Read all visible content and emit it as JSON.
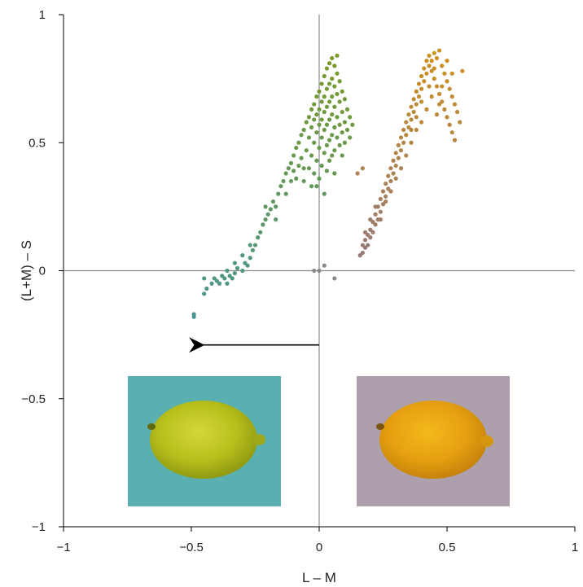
{
  "chart_data": {
    "type": "scatter",
    "title": "",
    "xlabel": "L – M",
    "ylabel": "(L+M) – S",
    "xlim": [
      -1,
      1
    ],
    "ylim": [
      -1,
      1
    ],
    "xticks": [
      -1,
      -0.5,
      0,
      0.5,
      1
    ],
    "yticks": [
      -1,
      -0.5,
      0,
      0.5,
      1
    ],
    "xtick_labels": [
      "−1",
      "−0.5",
      "0",
      "0.5",
      "1"
    ],
    "ytick_labels": [
      "−1",
      "−0.5",
      "0",
      "0.5",
      "1"
    ],
    "grid": false,
    "zero_lines": true,
    "series": [
      {
        "color": "#7a9a3c",
        "points": [
          [
            -0.49,
            -0.18
          ],
          [
            -0.49,
            -0.17
          ],
          [
            -0.45,
            -0.09
          ],
          [
            -0.44,
            -0.07
          ],
          [
            -0.45,
            -0.03
          ],
          [
            -0.42,
            -0.05
          ],
          [
            -0.41,
            -0.03
          ],
          [
            -0.4,
            -0.04
          ],
          [
            -0.39,
            -0.05
          ],
          [
            -0.38,
            -0.02
          ],
          [
            -0.37,
            -0.03
          ],
          [
            -0.36,
            -0.05
          ],
          [
            -0.36,
            0.0
          ],
          [
            -0.35,
            -0.02
          ],
          [
            -0.34,
            -0.03
          ],
          [
            -0.33,
            -0.01
          ],
          [
            -0.32,
            0.01
          ],
          [
            -0.3,
            0.0
          ],
          [
            -0.29,
            0.03
          ],
          [
            -0.28,
            0.02
          ],
          [
            -0.27,
            0.05
          ],
          [
            -0.26,
            0.08
          ],
          [
            -0.25,
            0.1
          ],
          [
            -0.24,
            0.13
          ],
          [
            -0.23,
            0.15
          ],
          [
            -0.22,
            0.18
          ],
          [
            -0.21,
            0.2
          ],
          [
            -0.2,
            0.22
          ],
          [
            -0.19,
            0.24
          ],
          [
            -0.18,
            0.27
          ],
          [
            -0.17,
            0.25
          ],
          [
            -0.16,
            0.3
          ],
          [
            -0.15,
            0.33
          ],
          [
            -0.14,
            0.35
          ],
          [
            -0.13,
            0.38
          ],
          [
            -0.12,
            0.4
          ],
          [
            -0.11,
            0.42
          ],
          [
            -0.1,
            0.45
          ],
          [
            -0.1,
            0.39
          ],
          [
            -0.09,
            0.48
          ],
          [
            -0.09,
            0.36
          ],
          [
            -0.08,
            0.5
          ],
          [
            -0.08,
            0.41
          ],
          [
            -0.07,
            0.53
          ],
          [
            -0.07,
            0.44
          ],
          [
            -0.06,
            0.55
          ],
          [
            -0.06,
            0.35
          ],
          [
            -0.05,
            0.58
          ],
          [
            -0.05,
            0.47
          ],
          [
            -0.04,
            0.6
          ],
          [
            -0.04,
            0.52
          ],
          [
            -0.04,
            0.4
          ],
          [
            -0.03,
            0.63
          ],
          [
            -0.03,
            0.56
          ],
          [
            -0.03,
            0.45
          ],
          [
            -0.03,
            0.33
          ],
          [
            -0.02,
            0.65
          ],
          [
            -0.02,
            0.59
          ],
          [
            -0.02,
            0.5
          ],
          [
            -0.02,
            0.38
          ],
          [
            -0.01,
            0.68
          ],
          [
            -0.01,
            0.61
          ],
          [
            -0.01,
            0.54
          ],
          [
            -0.01,
            0.43
          ],
          [
            0.0,
            0.7
          ],
          [
            0.0,
            0.63
          ],
          [
            0.0,
            0.57
          ],
          [
            0.0,
            0.48
          ],
          [
            0.0,
            0.36
          ],
          [
            0.01,
            0.73
          ],
          [
            0.01,
            0.66
          ],
          [
            0.01,
            0.59
          ],
          [
            0.01,
            0.52
          ],
          [
            0.01,
            0.41
          ],
          [
            0.02,
            0.76
          ],
          [
            0.02,
            0.68
          ],
          [
            0.02,
            0.62
          ],
          [
            0.02,
            0.55
          ],
          [
            0.02,
            0.46
          ],
          [
            0.03,
            0.79
          ],
          [
            0.03,
            0.71
          ],
          [
            0.03,
            0.64
          ],
          [
            0.03,
            0.57
          ],
          [
            0.03,
            0.49
          ],
          [
            0.03,
            0.39
          ],
          [
            0.04,
            0.81
          ],
          [
            0.04,
            0.73
          ],
          [
            0.04,
            0.66
          ],
          [
            0.04,
            0.59
          ],
          [
            0.04,
            0.51
          ],
          [
            0.04,
            0.43
          ],
          [
            0.05,
            0.83
          ],
          [
            0.05,
            0.75
          ],
          [
            0.05,
            0.68
          ],
          [
            0.05,
            0.61
          ],
          [
            0.05,
            0.53
          ],
          [
            0.05,
            0.45
          ],
          [
            0.06,
            0.8
          ],
          [
            0.06,
            0.72
          ],
          [
            0.06,
            0.64
          ],
          [
            0.06,
            0.56
          ],
          [
            0.06,
            0.47
          ],
          [
            0.07,
            0.84
          ],
          [
            0.07,
            0.77
          ],
          [
            0.07,
            0.69
          ],
          [
            0.07,
            0.6
          ],
          [
            0.07,
            0.52
          ],
          [
            0.08,
            0.74
          ],
          [
            0.08,
            0.66
          ],
          [
            0.08,
            0.57
          ],
          [
            0.08,
            0.49
          ],
          [
            0.09,
            0.7
          ],
          [
            0.09,
            0.62
          ],
          [
            0.09,
            0.54
          ],
          [
            0.1,
            0.67
          ],
          [
            0.1,
            0.58
          ],
          [
            0.1,
            0.5
          ],
          [
            0.11,
            0.63
          ],
          [
            0.11,
            0.55
          ],
          [
            0.12,
            0.6
          ],
          [
            0.12,
            0.52
          ],
          [
            0.13,
            0.57
          ],
          [
            -0.21,
            0.25
          ],
          [
            -0.11,
            0.35
          ],
          [
            -0.06,
            0.4
          ],
          [
            -0.01,
            0.33
          ],
          [
            0.02,
            0.3
          ],
          [
            0.06,
            0.38
          ],
          [
            0.09,
            0.45
          ],
          [
            -0.17,
            0.2
          ],
          [
            -0.13,
            0.3
          ],
          [
            -0.27,
            0.1
          ],
          [
            -0.3,
            0.06
          ],
          [
            -0.33,
            0.03
          ]
        ]
      },
      {
        "color": "#c08a3a",
        "points": [
          [
            0.16,
            0.06
          ],
          [
            0.17,
            0.07
          ],
          [
            0.17,
            0.1
          ],
          [
            0.18,
            0.09
          ],
          [
            0.18,
            0.12
          ],
          [
            0.19,
            0.1
          ],
          [
            0.19,
            0.14
          ],
          [
            0.2,
            0.13
          ],
          [
            0.2,
            0.16
          ],
          [
            0.21,
            0.15
          ],
          [
            0.21,
            0.19
          ],
          [
            0.22,
            0.18
          ],
          [
            0.22,
            0.22
          ],
          [
            0.23,
            0.2
          ],
          [
            0.23,
            0.25
          ],
          [
            0.24,
            0.23
          ],
          [
            0.24,
            0.28
          ],
          [
            0.25,
            0.26
          ],
          [
            0.25,
            0.31
          ],
          [
            0.26,
            0.29
          ],
          [
            0.26,
            0.34
          ],
          [
            0.27,
            0.32
          ],
          [
            0.27,
            0.37
          ],
          [
            0.28,
            0.35
          ],
          [
            0.28,
            0.4
          ],
          [
            0.29,
            0.38
          ],
          [
            0.29,
            0.43
          ],
          [
            0.3,
            0.41
          ],
          [
            0.3,
            0.46
          ],
          [
            0.31,
            0.44
          ],
          [
            0.31,
            0.49
          ],
          [
            0.32,
            0.47
          ],
          [
            0.32,
            0.52
          ],
          [
            0.33,
            0.5
          ],
          [
            0.33,
            0.55
          ],
          [
            0.34,
            0.53
          ],
          [
            0.34,
            0.58
          ],
          [
            0.35,
            0.56
          ],
          [
            0.35,
            0.61
          ],
          [
            0.36,
            0.59
          ],
          [
            0.36,
            0.64
          ],
          [
            0.37,
            0.62
          ],
          [
            0.37,
            0.67
          ],
          [
            0.38,
            0.65
          ],
          [
            0.38,
            0.7
          ],
          [
            0.39,
            0.68
          ],
          [
            0.39,
            0.73
          ],
          [
            0.4,
            0.71
          ],
          [
            0.4,
            0.76
          ],
          [
            0.41,
            0.74
          ],
          [
            0.41,
            0.79
          ],
          [
            0.42,
            0.77
          ],
          [
            0.42,
            0.82
          ],
          [
            0.43,
            0.8
          ],
          [
            0.43,
            0.84
          ],
          [
            0.44,
            0.82
          ],
          [
            0.44,
            0.78
          ],
          [
            0.45,
            0.85
          ],
          [
            0.45,
            0.75
          ],
          [
            0.46,
            0.83
          ],
          [
            0.46,
            0.72
          ],
          [
            0.47,
            0.86
          ],
          [
            0.47,
            0.69
          ],
          [
            0.48,
            0.8
          ],
          [
            0.48,
            0.66
          ],
          [
            0.49,
            0.77
          ],
          [
            0.49,
            0.63
          ],
          [
            0.5,
            0.74
          ],
          [
            0.5,
            0.6
          ],
          [
            0.51,
            0.71
          ],
          [
            0.51,
            0.57
          ],
          [
            0.52,
            0.68
          ],
          [
            0.52,
            0.54
          ],
          [
            0.53,
            0.65
          ],
          [
            0.53,
            0.51
          ],
          [
            0.54,
            0.62
          ],
          [
            0.55,
            0.58
          ],
          [
            0.56,
            0.78
          ],
          [
            0.36,
            0.5
          ],
          [
            0.38,
            0.55
          ],
          [
            0.4,
            0.58
          ],
          [
            0.42,
            0.63
          ],
          [
            0.44,
            0.68
          ],
          [
            0.46,
            0.61
          ],
          [
            0.48,
            0.72
          ],
          [
            0.34,
            0.45
          ],
          [
            0.32,
            0.4
          ],
          [
            0.3,
            0.36
          ],
          [
            0.28,
            0.31
          ],
          [
            0.26,
            0.27
          ],
          [
            0.24,
            0.2
          ],
          [
            0.22,
            0.25
          ],
          [
            0.2,
            0.2
          ],
          [
            0.18,
            0.15
          ],
          [
            0.4,
            0.66
          ],
          [
            0.43,
            0.72
          ],
          [
            0.45,
            0.79
          ],
          [
            0.47,
            0.65
          ],
          [
            0.5,
            0.82
          ],
          [
            0.52,
            0.77
          ],
          [
            0.38,
            0.6
          ],
          [
            0.36,
            0.55
          ],
          [
            0.17,
            0.4
          ],
          [
            0.15,
            0.38
          ]
        ]
      },
      {
        "color": "#8a8a8a",
        "points": [
          [
            -0.02,
            0.0
          ],
          [
            0.0,
            0.0
          ],
          [
            0.02,
            0.02
          ],
          [
            0.06,
            -0.03
          ]
        ]
      }
    ],
    "arrow": {
      "from": [
        0.0,
        -0.29
      ],
      "to": [
        -0.49,
        -0.29
      ]
    },
    "images": [
      {
        "name": "lemon-on-teal",
        "description_visual": true
      },
      {
        "name": "lemon-on-mauve",
        "description_visual": true
      }
    ]
  }
}
